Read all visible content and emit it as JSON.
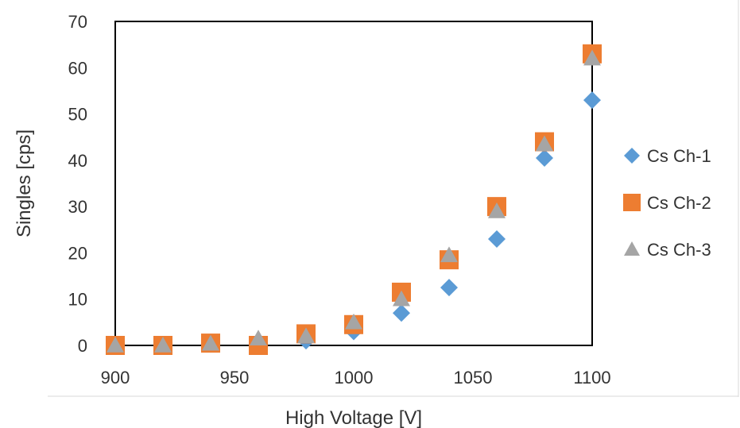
{
  "chart_data": {
    "type": "scatter",
    "title": "",
    "xlabel": "High Voltage [V]",
    "ylabel": "Singles [cps]",
    "xlim": [
      900,
      1100
    ],
    "ylim": [
      0,
      70
    ],
    "x_ticks": [
      900,
      950,
      1000,
      1050,
      1100
    ],
    "y_ticks": [
      0,
      10,
      20,
      30,
      40,
      50,
      60,
      70
    ],
    "grid": false,
    "legend_position": "right",
    "x": [
      900,
      920,
      940,
      960,
      980,
      1000,
      1020,
      1040,
      1060,
      1080,
      1100
    ],
    "series": [
      {
        "name": "Cs Ch-1",
        "marker": "diamond",
        "color": "#5B9BD5",
        "values": [
          0,
          0,
          0.3,
          0.5,
          1,
          3,
          7,
          12.5,
          23,
          40.5,
          53
        ]
      },
      {
        "name": "Cs Ch-2",
        "marker": "square",
        "color": "#ED7D31",
        "values": [
          0,
          0,
          0.5,
          0,
          2.5,
          4.5,
          11.5,
          18.5,
          30,
          44,
          63
        ]
      },
      {
        "name": "Cs Ch-3",
        "marker": "triangle",
        "color": "#A5A5A5",
        "values": [
          0,
          0,
          0.4,
          1.5,
          2,
          5,
          10,
          19.5,
          29,
          43.5,
          62
        ]
      }
    ]
  }
}
